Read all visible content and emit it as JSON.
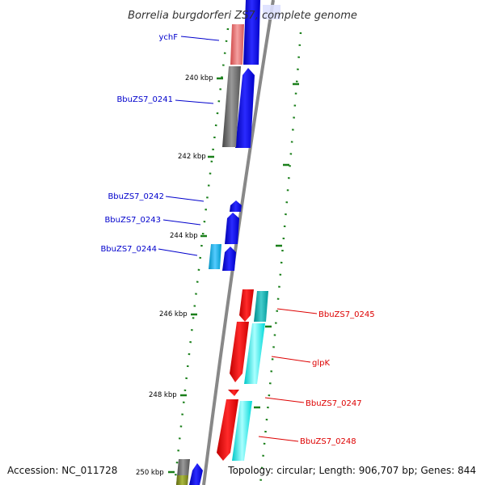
{
  "title": "Borrelia burgdorferi ZS7, complete genome",
  "footer": {
    "accession": "Accession: NC_011728",
    "summary": "Topology: circular; Length: 906,707 bp; Genes: 844"
  },
  "ticks": [
    {
      "label": "240 kbp",
      "kbp": 240
    },
    {
      "label": "242 kbp",
      "kbp": 242
    },
    {
      "label": "244 kbp",
      "kbp": 244
    },
    {
      "label": "246 kbp",
      "kbp": 246
    },
    {
      "label": "248 kbp",
      "kbp": 248
    },
    {
      "label": "250 kbp",
      "kbp": 250
    }
  ],
  "genes": [
    {
      "name": "ychF",
      "strand": "plus"
    },
    {
      "name": "BbuZS7_0241",
      "strand": "plus"
    },
    {
      "name": "BbuZS7_0242",
      "strand": "plus"
    },
    {
      "name": "BbuZS7_0243",
      "strand": "plus"
    },
    {
      "name": "BbuZS7_0244",
      "strand": "plus"
    },
    {
      "name": "BbuZS7_0245",
      "strand": "minus"
    },
    {
      "name": "glpK",
      "strand": "minus"
    },
    {
      "name": "BbuZS7_0247",
      "strand": "minus"
    },
    {
      "name": "BbuZS7_0248",
      "strand": "minus"
    }
  ],
  "colors": {
    "plus_label": "#0000cc",
    "minus_label": "#dd0000",
    "plus_cds": "#0000ff",
    "minus_cds": "#ff0000",
    "tick": "#1a7f1a",
    "backbone": "#888888"
  }
}
